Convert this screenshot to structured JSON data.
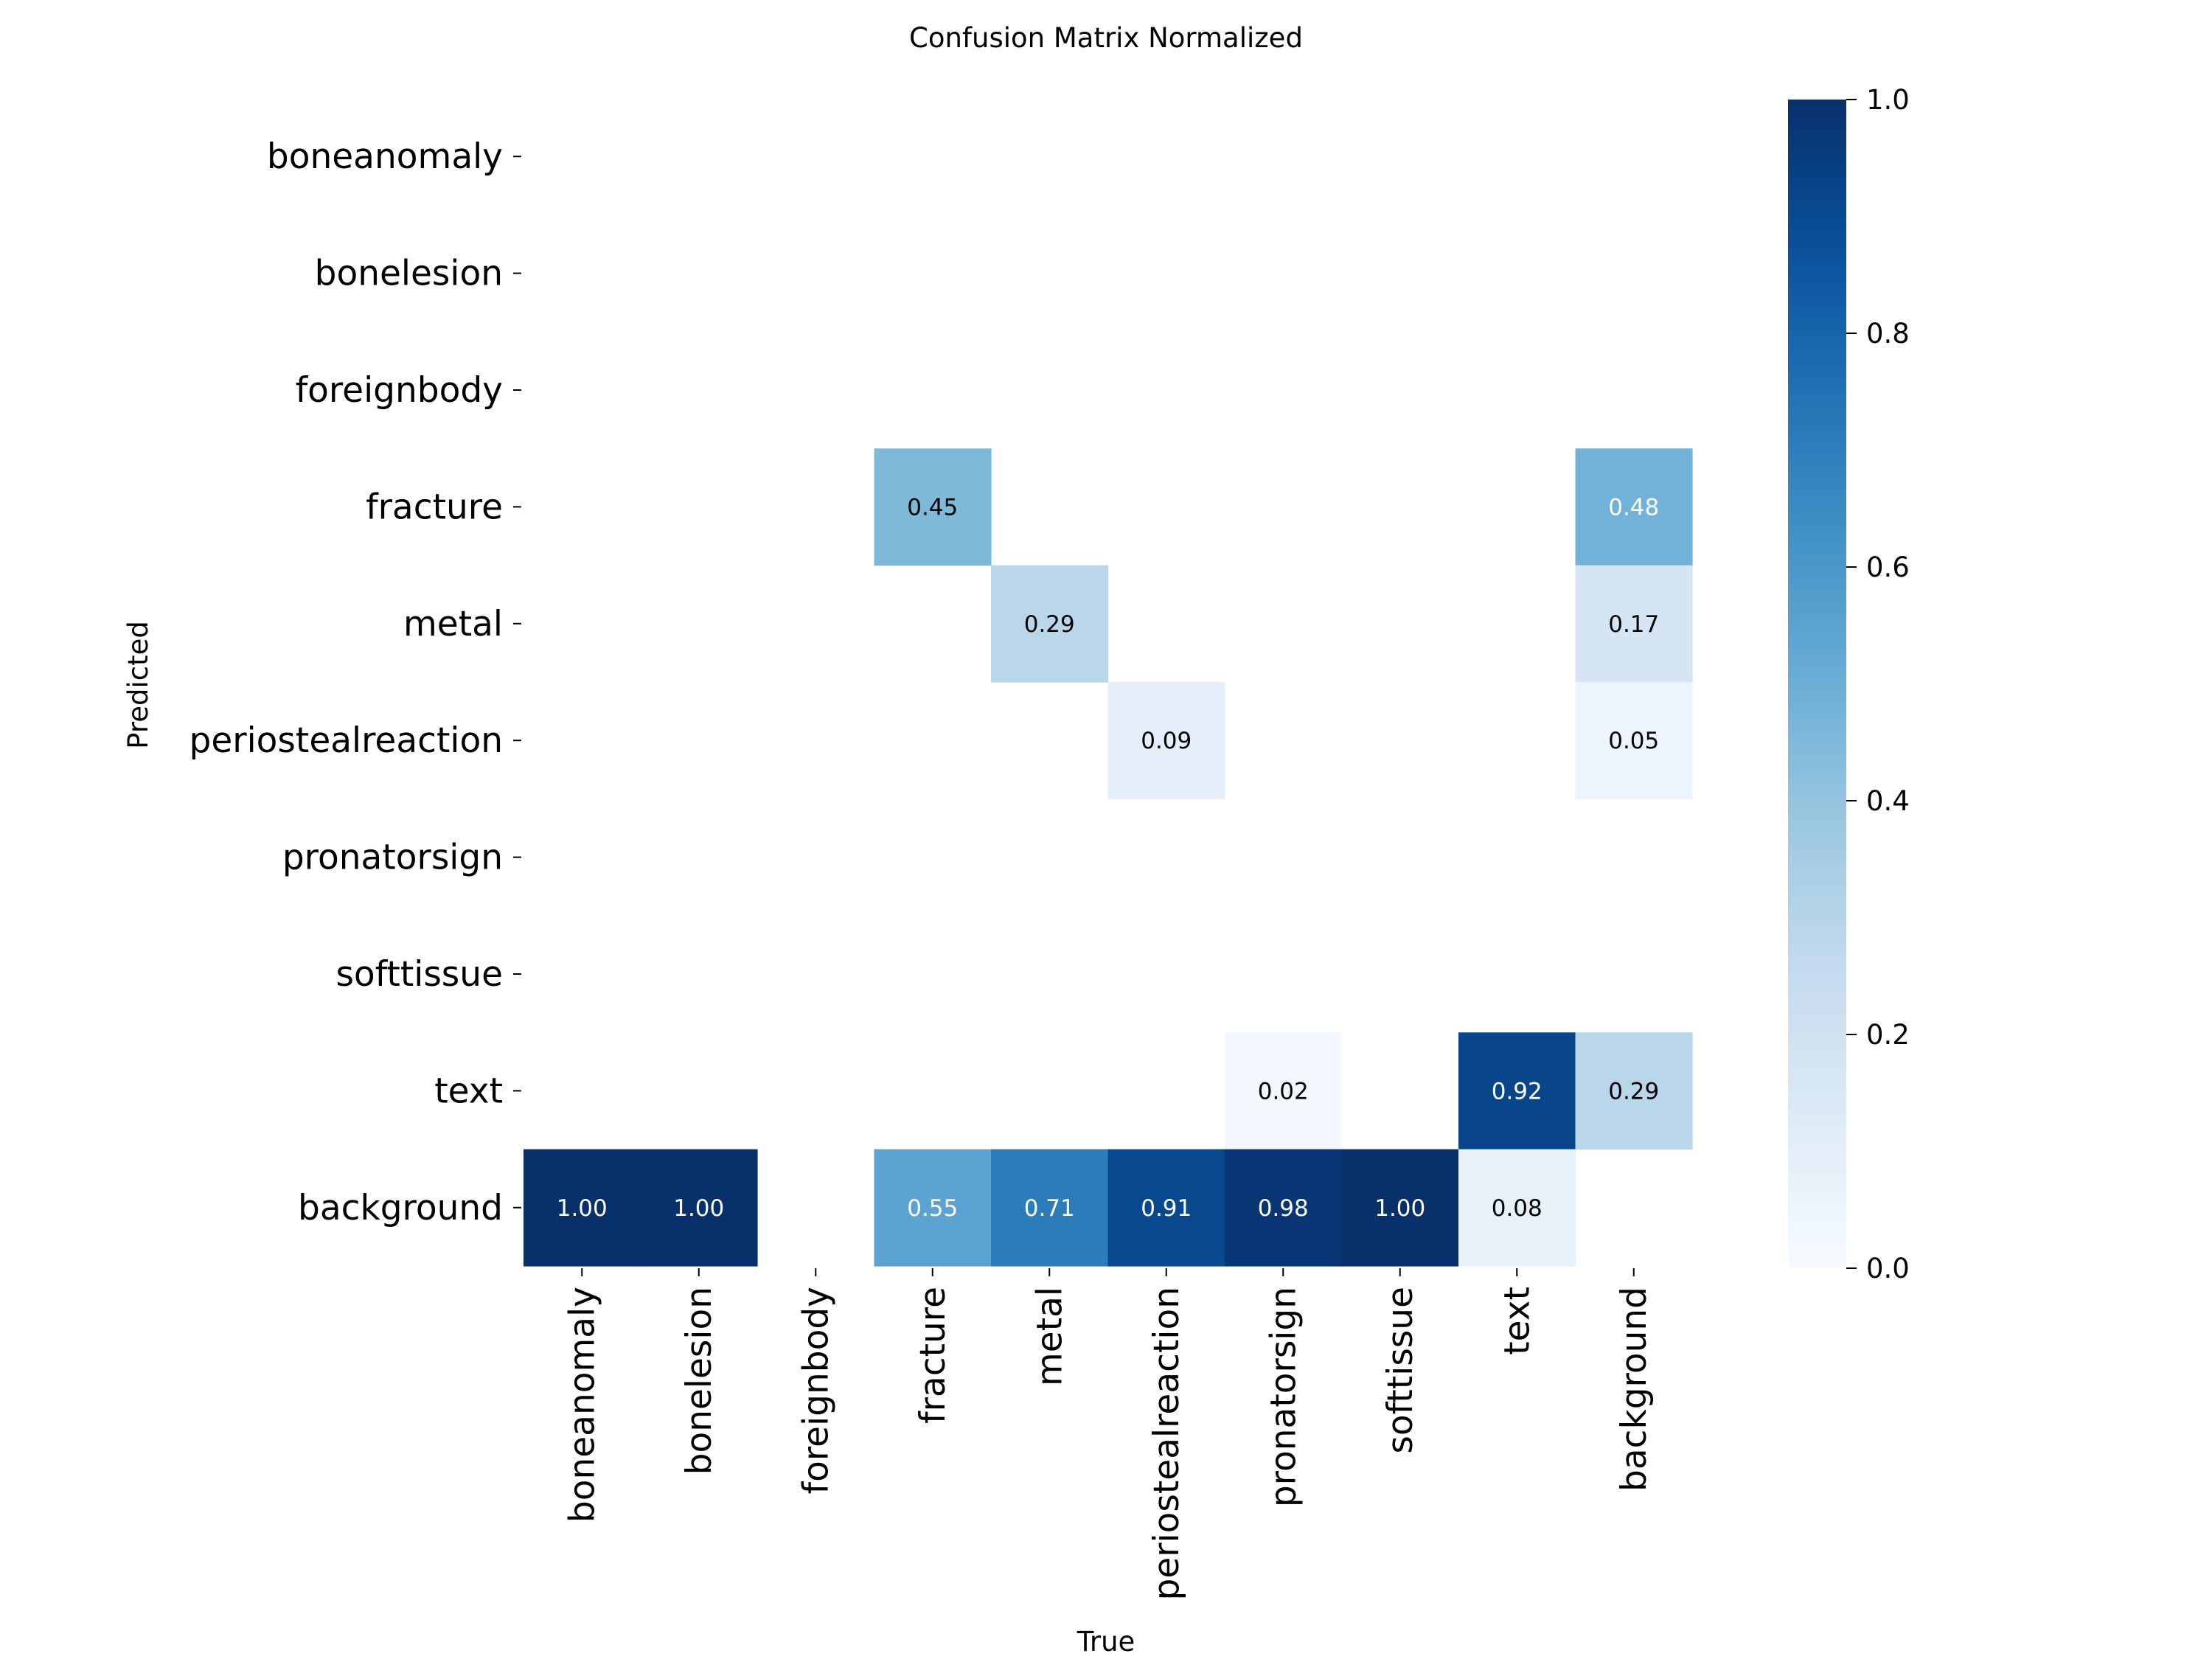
{
  "chart_data": {
    "type": "heatmap",
    "title": "Confusion Matrix Normalized",
    "xlabel": "True",
    "ylabel": "Predicted",
    "x_categories": [
      "boneanomaly",
      "bonelesion",
      "foreignbody",
      "fracture",
      "metal",
      "periostealreaction",
      "pronatorsign",
      "softtissue",
      "text",
      "background"
    ],
    "y_categories": [
      "boneanomaly",
      "bonelesion",
      "foreignbody",
      "fracture",
      "metal",
      "periostealreaction",
      "pronatorsign",
      "softtissue",
      "text",
      "background"
    ],
    "values": [
      [
        null,
        null,
        null,
        null,
        null,
        null,
        null,
        null,
        null,
        null
      ],
      [
        null,
        null,
        null,
        null,
        null,
        null,
        null,
        null,
        null,
        null
      ],
      [
        null,
        null,
        null,
        null,
        null,
        null,
        null,
        null,
        null,
        null
      ],
      [
        null,
        null,
        null,
        0.45,
        null,
        null,
        null,
        null,
        null,
        0.48
      ],
      [
        null,
        null,
        null,
        null,
        0.29,
        null,
        null,
        null,
        null,
        0.17
      ],
      [
        null,
        null,
        null,
        null,
        null,
        0.09,
        null,
        null,
        null,
        0.05
      ],
      [
        null,
        null,
        null,
        null,
        null,
        null,
        null,
        null,
        null,
        null
      ],
      [
        null,
        null,
        null,
        null,
        null,
        null,
        null,
        null,
        null,
        null
      ],
      [
        null,
        null,
        null,
        null,
        null,
        null,
        0.02,
        null,
        0.92,
        0.29
      ],
      [
        1.0,
        1.0,
        null,
        0.55,
        0.71,
        0.91,
        0.98,
        1.0,
        0.08,
        null
      ]
    ],
    "colorbar": {
      "range": [
        0.0,
        1.0
      ],
      "ticks": [
        "0.0",
        "0.2",
        "0.4",
        "0.6",
        "0.8",
        "1.0"
      ],
      "colormap": "Blues",
      "low_color": "#f7fbff",
      "high_color": "#08306b"
    },
    "grid": false
  }
}
